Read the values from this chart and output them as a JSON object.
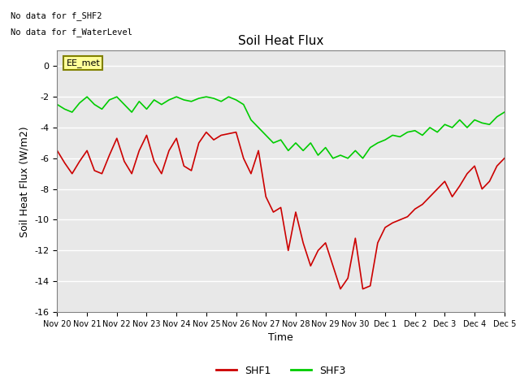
{
  "title": "Soil Heat Flux",
  "xlabel": "Time",
  "ylabel": "Soil Heat Flux (W/m2)",
  "ylim": [
    -16,
    1
  ],
  "yticks": [
    0,
    -2,
    -4,
    -6,
    -8,
    -10,
    -12,
    -14,
    -16
  ],
  "background_color": "#e8e8e8",
  "top_left_text_line1": "No data for f_SHF2",
  "top_left_text_line2": "No data for f_WaterLevel",
  "box_label": "EE_met",
  "x_labels": [
    "Nov 20",
    "Nov 21",
    "Nov 22",
    "Nov 23",
    "Nov 24",
    "Nov 25",
    "Nov 26",
    "Nov 27",
    "Nov 28",
    "Nov 29",
    "Nov 30",
    "Dec 1",
    "Dec 2",
    "Dec 3",
    "Dec 4",
    "Dec 5"
  ],
  "shf1_color": "#cc0000",
  "shf3_color": "#00cc00",
  "legend_shf1": "SHF1",
  "legend_shf3": "SHF3",
  "shf1_x": [
    0.0,
    0.25,
    0.5,
    0.75,
    1.0,
    1.25,
    1.5,
    1.75,
    2.0,
    2.25,
    2.5,
    2.75,
    3.0,
    3.25,
    3.5,
    3.75,
    4.0,
    4.25,
    4.5,
    4.75,
    5.0,
    5.25,
    5.5,
    5.75,
    6.0,
    6.25,
    6.5,
    6.75,
    7.0,
    7.25,
    7.5,
    7.75,
    8.0,
    8.25,
    8.5,
    8.75,
    9.0,
    9.25,
    9.5,
    9.75,
    10.0,
    10.25,
    10.5,
    10.75,
    11.0,
    11.25,
    11.5,
    11.75,
    12.0,
    12.25,
    12.5,
    12.75,
    13.0,
    13.25,
    13.5,
    13.75,
    14.0,
    14.25,
    14.5,
    14.75,
    15.0
  ],
  "shf1_y": [
    -5.5,
    -6.3,
    -7.0,
    -6.2,
    -5.5,
    -6.8,
    -7.0,
    -5.8,
    -4.7,
    -6.2,
    -7.0,
    -5.5,
    -4.5,
    -6.2,
    -7.0,
    -5.5,
    -4.7,
    -6.5,
    -6.8,
    -5.0,
    -4.3,
    -4.8,
    -4.5,
    -4.4,
    -4.3,
    -6.0,
    -7.0,
    -5.5,
    -8.5,
    -9.5,
    -9.2,
    -12.0,
    -9.5,
    -11.5,
    -13.0,
    -12.0,
    -11.5,
    -13.0,
    -14.5,
    -13.8,
    -11.2,
    -14.5,
    -14.3,
    -11.5,
    -10.5,
    -10.2,
    -10.0,
    -9.8,
    -9.3,
    -9.0,
    -8.5,
    -8.0,
    -7.5,
    -8.5,
    -7.8,
    -7.0,
    -6.5,
    -8.0,
    -7.5,
    -6.5,
    -6.0
  ],
  "shf3_x": [
    0.0,
    0.25,
    0.5,
    0.75,
    1.0,
    1.25,
    1.5,
    1.75,
    2.0,
    2.25,
    2.5,
    2.75,
    3.0,
    3.25,
    3.5,
    3.75,
    4.0,
    4.25,
    4.5,
    4.75,
    5.0,
    5.25,
    5.5,
    5.75,
    6.0,
    6.25,
    6.5,
    6.75,
    7.0,
    7.25,
    7.5,
    7.75,
    8.0,
    8.25,
    8.5,
    8.75,
    9.0,
    9.25,
    9.5,
    9.75,
    10.0,
    10.25,
    10.5,
    10.75,
    11.0,
    11.25,
    11.5,
    11.75,
    12.0,
    12.25,
    12.5,
    12.75,
    13.0,
    13.25,
    13.5,
    13.75,
    14.0,
    14.25,
    14.5,
    14.75,
    15.0
  ],
  "shf3_y": [
    -2.5,
    -2.8,
    -3.0,
    -2.4,
    -2.0,
    -2.5,
    -2.8,
    -2.2,
    -2.0,
    -2.5,
    -3.0,
    -2.3,
    -2.8,
    -2.2,
    -2.5,
    -2.2,
    -2.0,
    -2.2,
    -2.3,
    -2.1,
    -2.0,
    -2.1,
    -2.3,
    -2.0,
    -2.2,
    -2.5,
    -3.5,
    -4.0,
    -4.5,
    -5.0,
    -4.8,
    -5.5,
    -5.0,
    -5.5,
    -5.0,
    -5.8,
    -5.3,
    -6.0,
    -5.8,
    -6.0,
    -5.5,
    -6.0,
    -5.3,
    -5.0,
    -4.8,
    -4.5,
    -4.6,
    -4.3,
    -4.2,
    -4.5,
    -4.0,
    -4.3,
    -3.8,
    -4.0,
    -3.5,
    -4.0,
    -3.5,
    -3.7,
    -3.8,
    -3.3,
    -3.0
  ]
}
